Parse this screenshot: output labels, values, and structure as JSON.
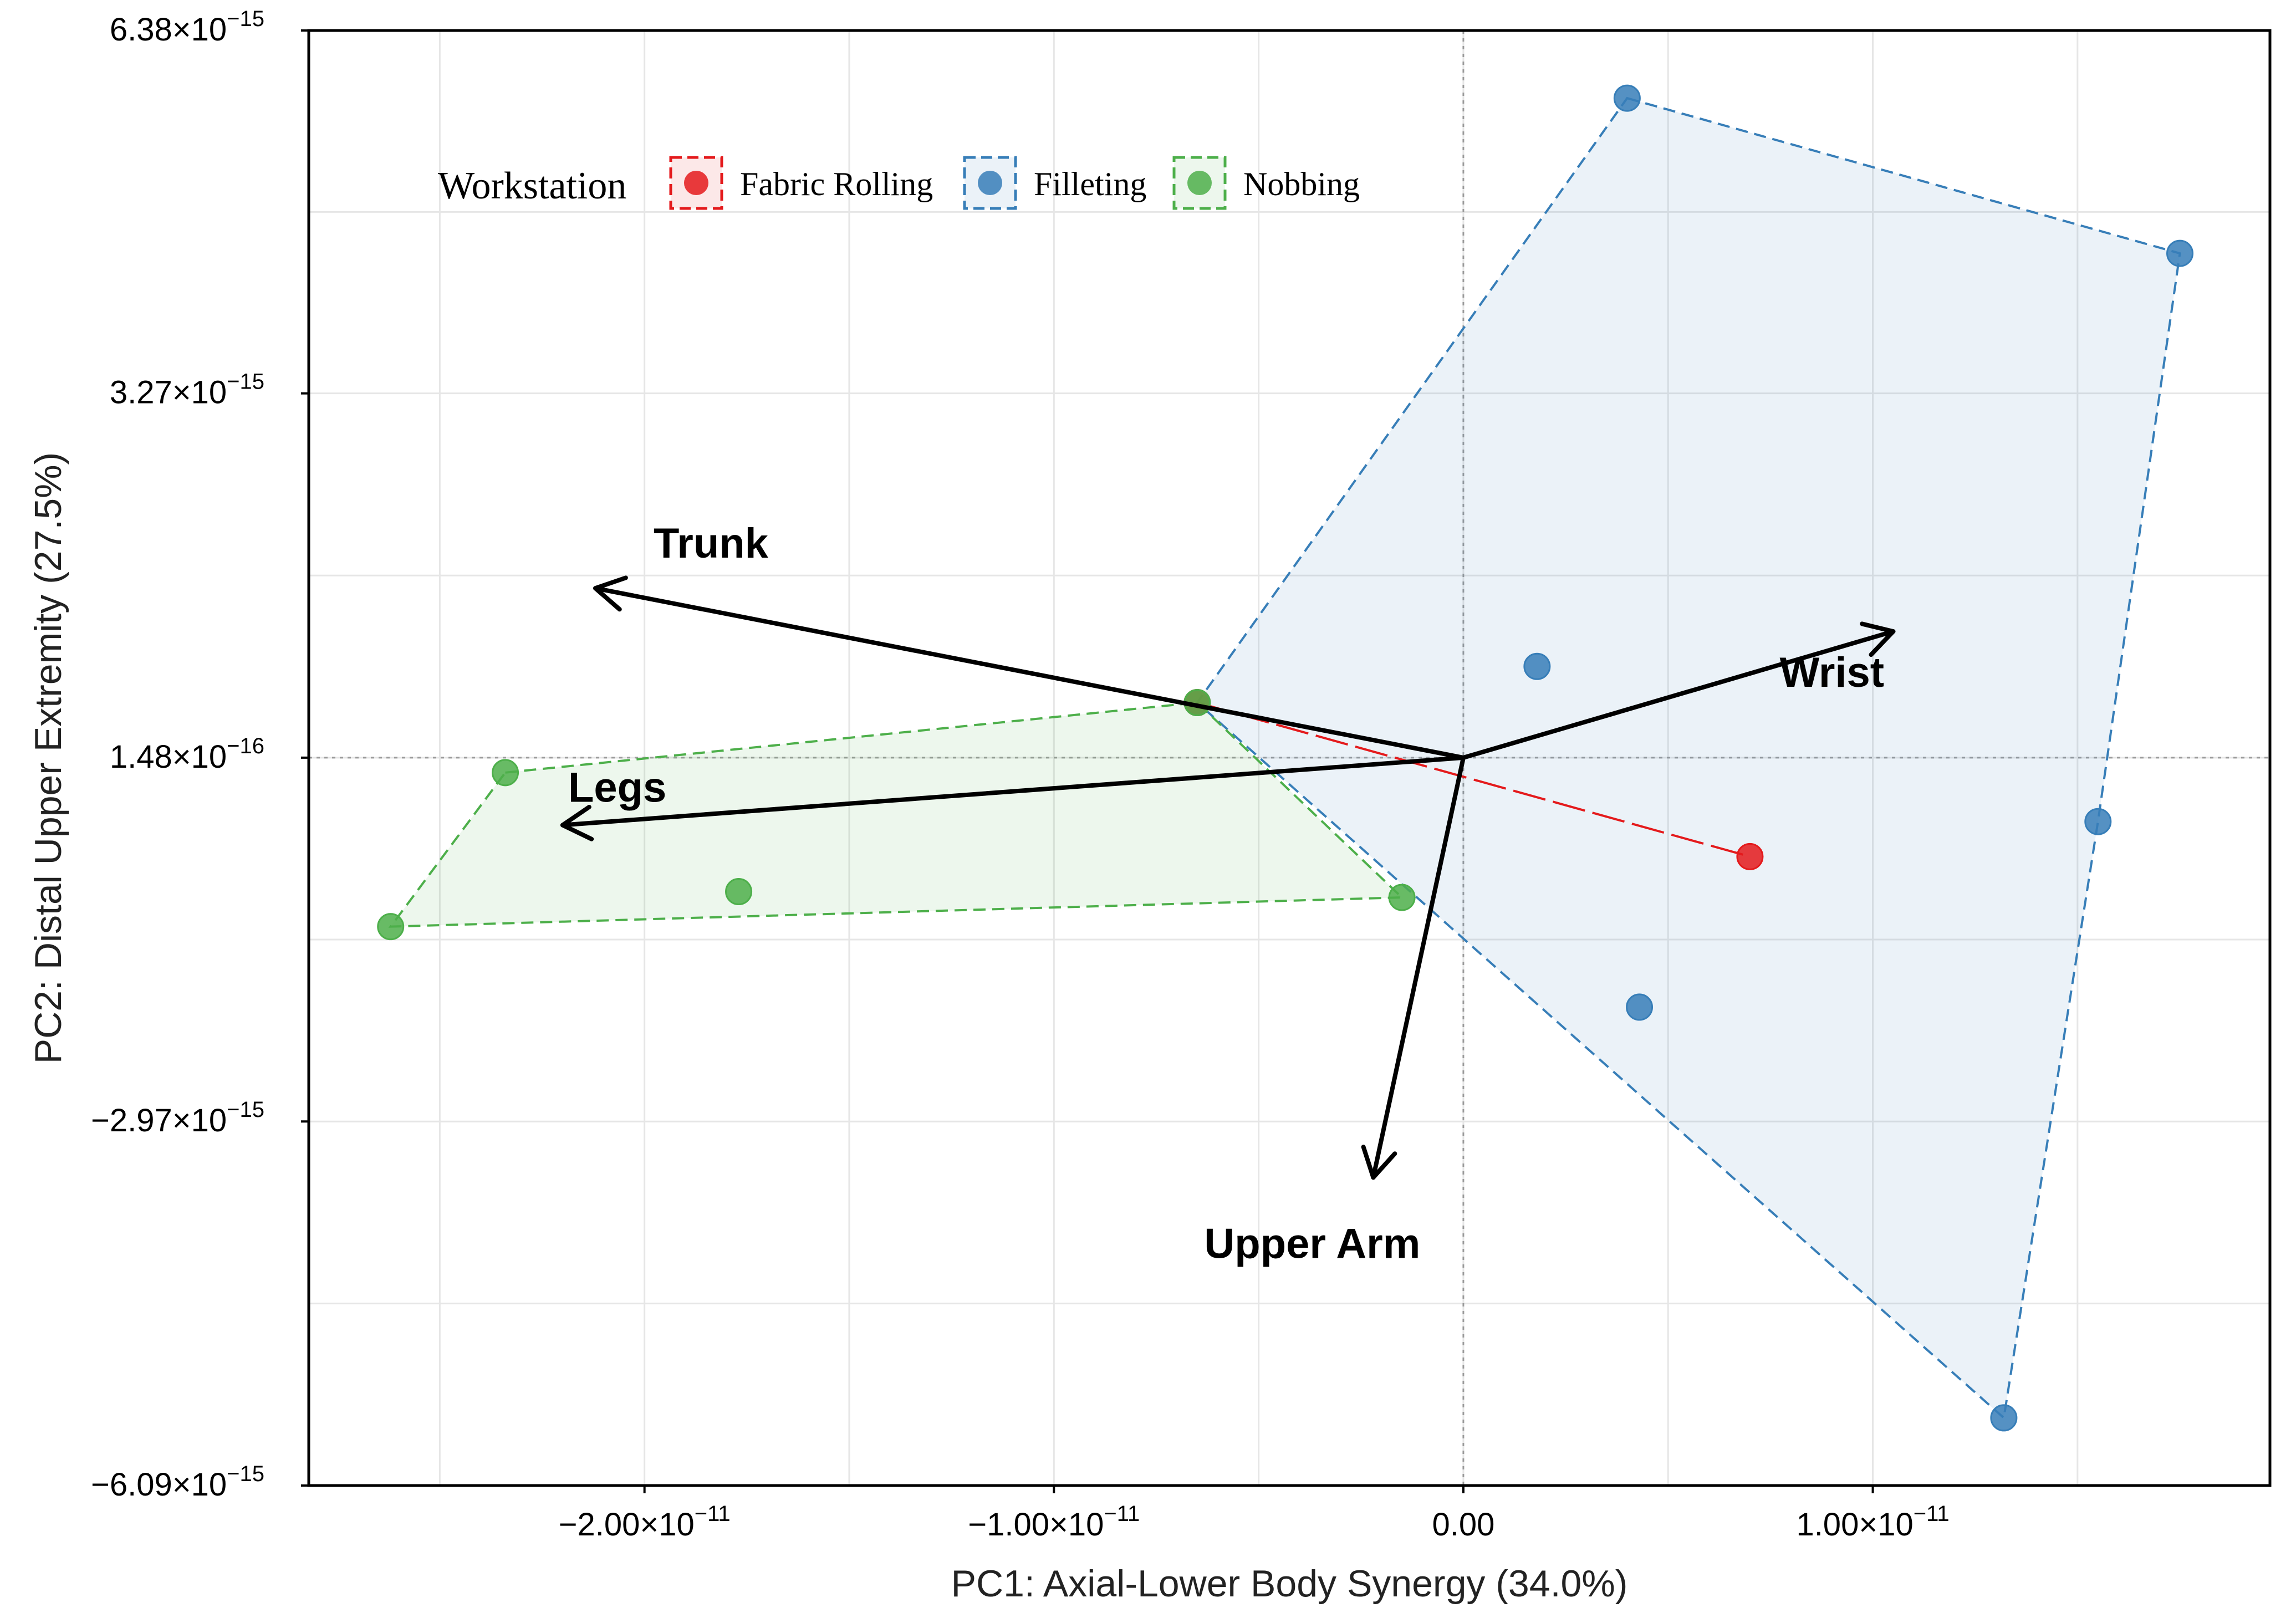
{
  "chart_data": {
    "type": "scatter",
    "subtype": "pca-biplot",
    "title": "",
    "xlabel": "PC1: Axial-Lower Body Synergy (34.0%)",
    "ylabel": "PC2: Distal Upper Extremity (27.5%)",
    "xlim": [
      -2.82e-11,
      1.97e-11
    ],
    "ylim": [
      -6.09e-15,
      6.38e-15
    ],
    "x_ticks": [
      {
        "value": -2e-11,
        "label": "−2.00×10",
        "exp": "−11"
      },
      {
        "value": -1e-11,
        "label": "−1.00×10",
        "exp": "−11"
      },
      {
        "value": 0,
        "label": "0.00",
        "exp": ""
      },
      {
        "value": 1e-11,
        "label": "1.00×10",
        "exp": "−11"
      }
    ],
    "y_ticks": [
      {
        "value": 6.38e-15,
        "label": "6.38×10",
        "exp": "−15"
      },
      {
        "value": 3.27e-15,
        "label": "3.27×10",
        "exp": "−15"
      },
      {
        "value": 1.48e-16,
        "label": "1.48×10",
        "exp": "−16"
      },
      {
        "value": -2.97e-15,
        "label": "−2.97×10",
        "exp": "−15"
      },
      {
        "value": -6.09e-15,
        "label": "−6.09×10",
        "exp": "−15"
      }
    ],
    "grid": true,
    "reference_lines": {
      "x": 0,
      "y": 1.48e-16
    },
    "legend": {
      "title": "Workstation",
      "position": "top-left",
      "entries": [
        "Fabric Rolling",
        "Filleting",
        "Nobbing"
      ]
    },
    "series": [
      {
        "name": "Fabric Rolling",
        "color": "#e41a1c",
        "points": [
          {
            "x": -6.5e-12,
            "y": 6.2e-16
          },
          {
            "x": 7e-12,
            "y": -7e-16
          }
        ]
      },
      {
        "name": "Filleting",
        "color": "#377eb8",
        "points": [
          {
            "x": 4e-12,
            "y": 5.8e-15
          },
          {
            "x": 1.75e-11,
            "y": 4.47e-15
          },
          {
            "x": 1.55e-11,
            "y": -4e-16
          },
          {
            "x": 1.32e-11,
            "y": -5.51e-15
          },
          {
            "x": 4.3e-12,
            "y": -1.99e-15
          },
          {
            "x": 1.8e-12,
            "y": 9.3e-16
          }
        ]
      },
      {
        "name": "Nobbing",
        "color": "#4daf4a",
        "points": [
          {
            "x": -2.34e-11,
            "y": 2e-17
          },
          {
            "x": -2.62e-11,
            "y": -1.3e-15
          },
          {
            "x": -1.77e-11,
            "y": -1e-15
          },
          {
            "x": -1.5e-12,
            "y": -1.05e-15
          },
          {
            "x": -6.5e-12,
            "y": 6.2e-16
          }
        ]
      }
    ],
    "hulls": [
      {
        "series": "Filleting",
        "color": "#377eb8",
        "points": [
          [
            4e-12,
            5.8e-15
          ],
          [
            1.75e-11,
            4.47e-15
          ],
          [
            1.55e-11,
            -4e-16
          ],
          [
            1.32e-11,
            -5.51e-15
          ],
          [
            -6.5e-12,
            6.2e-16
          ]
        ]
      },
      {
        "series": "Nobbing",
        "color": "#4daf4a",
        "points": [
          [
            -2.34e-11,
            2e-17
          ],
          [
            -6.5e-12,
            6.2e-16
          ],
          [
            -1.5e-12,
            -1.05e-15
          ],
          [
            -2.62e-11,
            -1.3e-15
          ]
        ]
      }
    ],
    "segments": [
      {
        "series": "Fabric Rolling",
        "color": "#e41a1c",
        "from": [
          -6.5e-12,
          6.2e-16
        ],
        "to": [
          7e-12,
          -7e-16
        ]
      }
    ],
    "vectors": [
      {
        "name": "Trunk",
        "origin": [
          0,
          1.48e-16
        ],
        "end": [
          -2.12e-11,
          1.6e-15
        ]
      },
      {
        "name": "Wrist",
        "origin": [
          0,
          1.48e-16
        ],
        "end": [
          1.05e-11,
          1.23e-15
        ]
      },
      {
        "name": "Legs",
        "origin": [
          0,
          1.48e-16
        ],
        "end": [
          -2.2e-11,
          -4.3e-16
        ]
      },
      {
        "name": "Upper Arm",
        "origin": [
          0,
          1.48e-16
        ],
        "end": [
          -2.2e-12,
          -3.45e-15
        ]
      }
    ]
  }
}
